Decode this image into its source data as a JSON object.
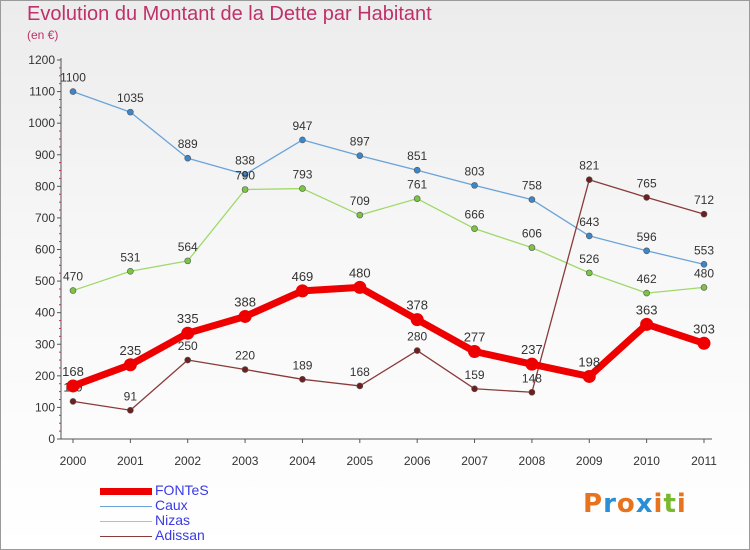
{
  "title": "Evolution du Montant de la Dette par Habitant",
  "subtitle": "(en €)",
  "logo": {
    "text": "Proxiti",
    "colors": [
      "#e8731e",
      "#2a8fd6",
      "#e8731e",
      "#2a8fd6",
      "#e8731e",
      "#7ab82e",
      "#e8731e"
    ]
  },
  "chart_data": {
    "type": "line",
    "x": [
      "2000",
      "2001",
      "2002",
      "2003",
      "2004",
      "2005",
      "2006",
      "2007",
      "2008",
      "2009",
      "2010",
      "2011"
    ],
    "ylim": [
      0,
      1200
    ],
    "yticks": [
      0,
      100,
      200,
      300,
      400,
      500,
      600,
      700,
      800,
      900,
      1000,
      1100,
      1200
    ],
    "grid": false,
    "legend_position": "bottom-left",
    "series": [
      {
        "name": "Caux",
        "color": "#6aa3d8",
        "marker": "#3d86c9",
        "values": [
          1100,
          1035,
          889,
          838,
          947,
          897,
          851,
          803,
          758,
          643,
          596,
          553
        ],
        "labels": [
          "1100",
          "1035",
          "889",
          "838",
          "947",
          "897",
          "851",
          "803",
          "758",
          "643",
          "596",
          "553"
        ]
      },
      {
        "name": "Nizas",
        "color": "#9ed96a",
        "marker": "#7cc444",
        "values": [
          470,
          531,
          564,
          790,
          793,
          709,
          761,
          666,
          606,
          526,
          462,
          480
        ],
        "labels": [
          "470",
          "531",
          "564",
          "790",
          "793",
          "709",
          "761",
          "666",
          "606",
          "526",
          "462",
          "480"
        ]
      },
      {
        "name": "Adissan",
        "color": "#8a3a3a",
        "marker": "#6e1f1f",
        "values": [
          119,
          91,
          250,
          220,
          189,
          168,
          280,
          159,
          148,
          821,
          765,
          712
        ],
        "labels": [
          "119",
          "91",
          "250",
          "220",
          "189",
          "168",
          "280",
          "159",
          "148",
          "821",
          "765",
          "712"
        ]
      },
      {
        "name": "FONTeS",
        "color": "#ee0000",
        "marker": "#ee0000",
        "bold": true,
        "values": [
          168,
          235,
          335,
          388,
          469,
          480,
          378,
          277,
          237,
          198,
          363,
          303
        ],
        "labels": [
          "168",
          "235",
          "335",
          "388",
          "469",
          "480",
          "378",
          "277",
          "237",
          "198",
          "363",
          "303"
        ]
      }
    ],
    "legend": [
      "FONTeS",
      "Caux",
      "Nizas",
      "Adissan"
    ]
  }
}
